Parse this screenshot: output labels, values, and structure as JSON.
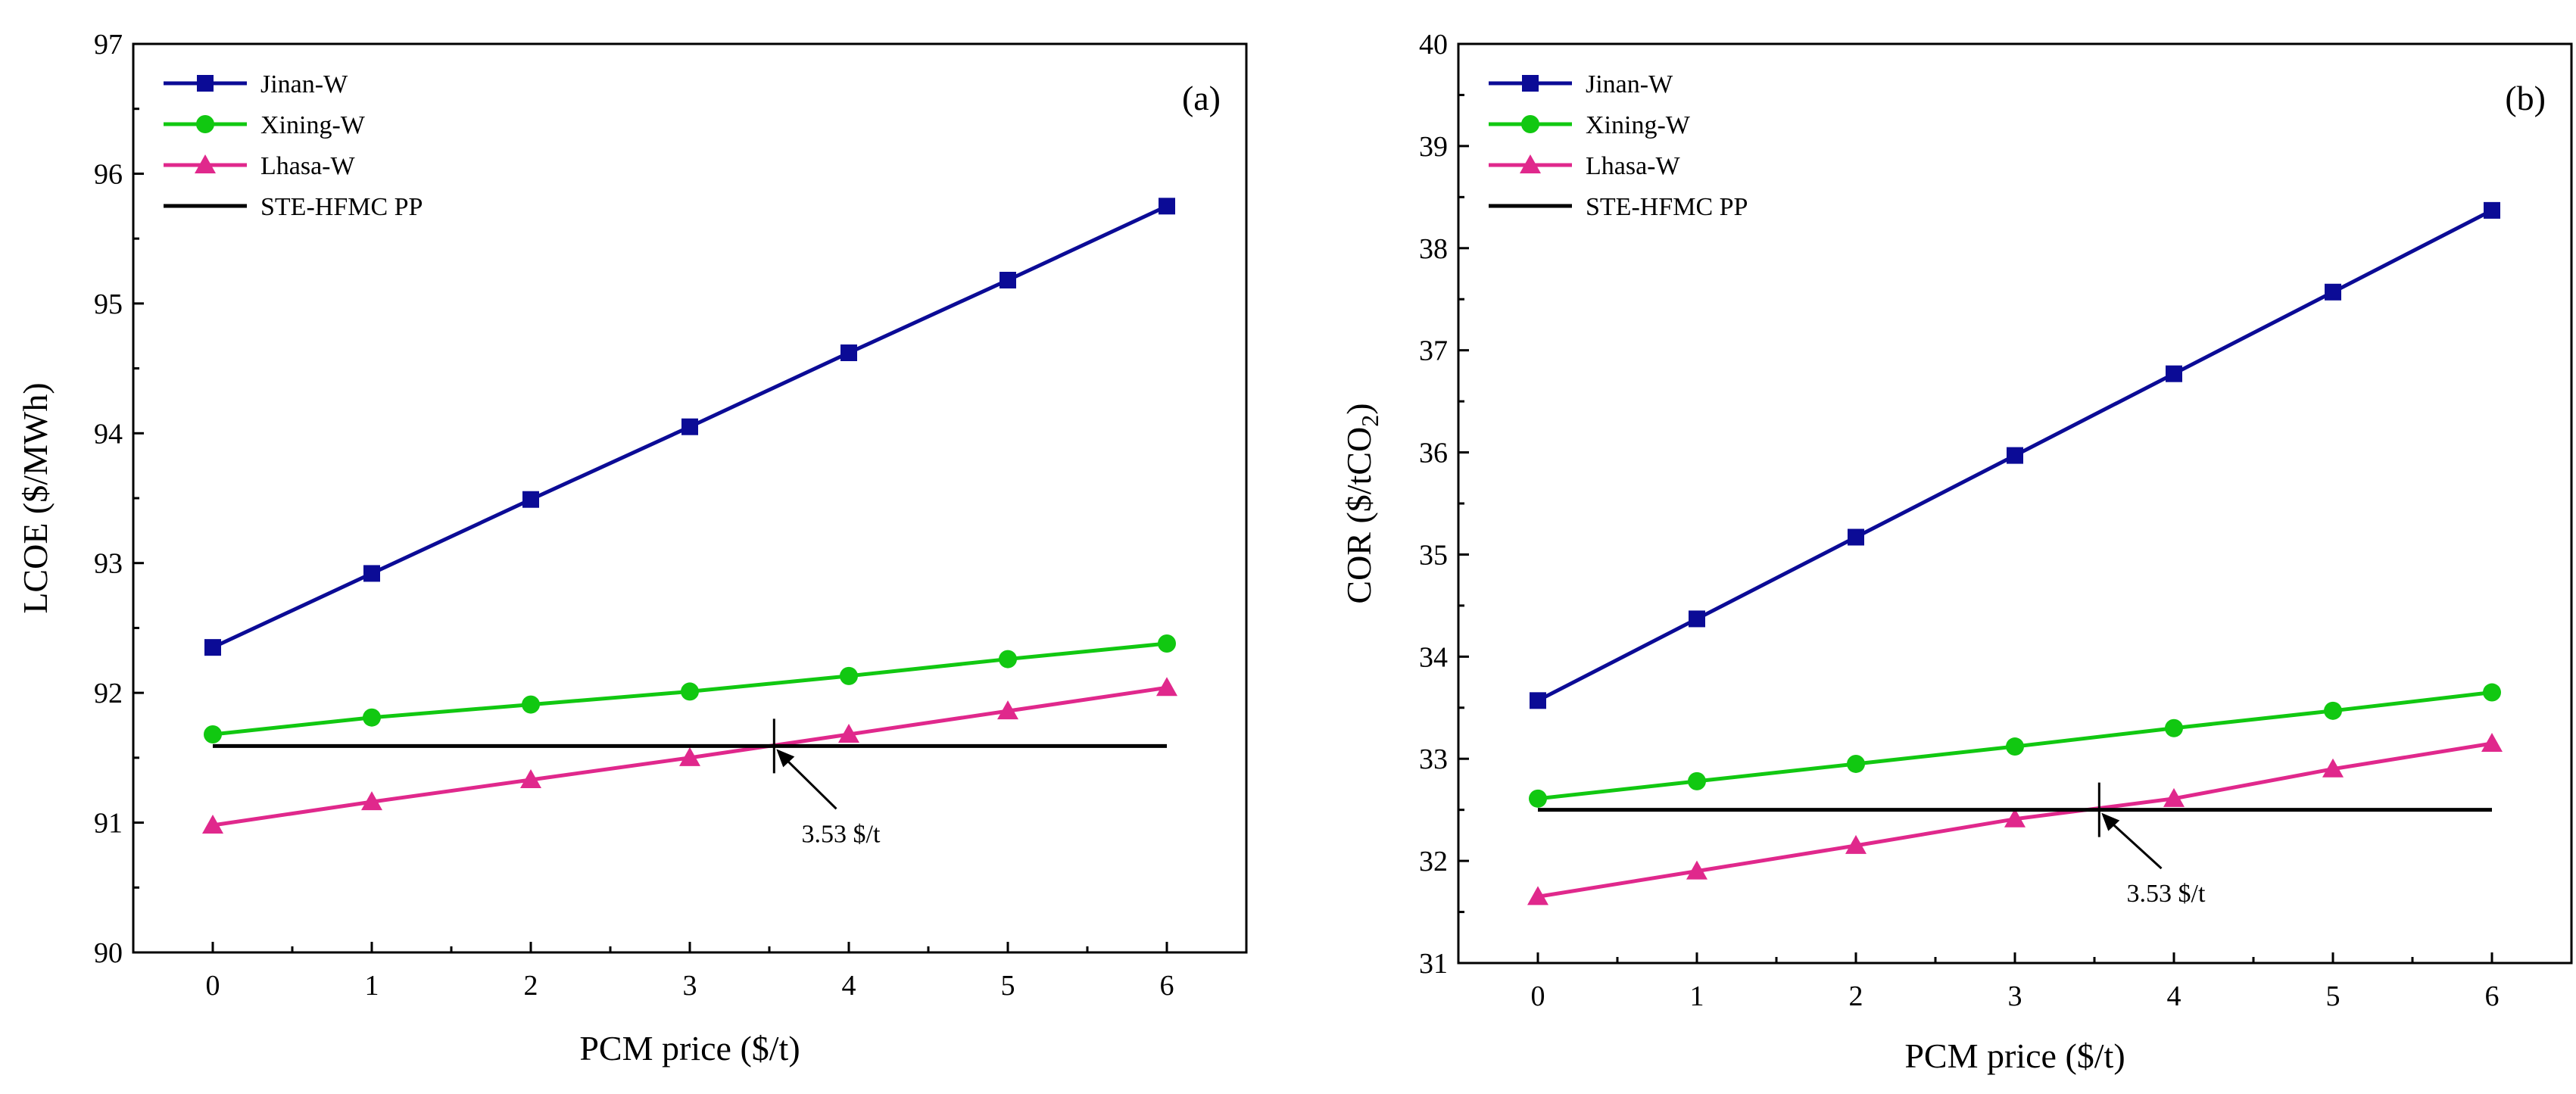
{
  "chart_data": [
    {
      "type": "line",
      "panel_tag": "(a)",
      "xlabel": "PCM price ($/t)",
      "ylabel": "LCOE ($/MWh)",
      "xlim": [
        -0.5,
        6.5
      ],
      "ylim": [
        90,
        97
      ],
      "xticks": [
        0,
        1,
        2,
        3,
        4,
        5,
        6
      ],
      "yticks": [
        90,
        91,
        92,
        93,
        94,
        95,
        96,
        97
      ],
      "x": [
        0,
        1,
        2,
        3,
        4,
        5,
        6
      ],
      "legend_position": "top-left",
      "series": [
        {
          "name": "Jinan-W",
          "color": "#0b0b96",
          "marker": "square",
          "values": [
            92.35,
            92.92,
            93.49,
            94.05,
            94.62,
            95.18,
            95.75
          ]
        },
        {
          "name": "Xining-W",
          "color": "#11c811",
          "marker": "circle",
          "values": [
            91.68,
            91.81,
            91.91,
            92.01,
            92.13,
            92.26,
            92.38
          ]
        },
        {
          "name": "Lhasa-W",
          "color": "#e0288c",
          "marker": "triangle",
          "values": [
            90.98,
            91.16,
            91.33,
            91.5,
            91.68,
            91.86,
            92.04
          ]
        },
        {
          "name": "STE-HFMC PP",
          "color": "#000000",
          "marker": "none",
          "values": [
            91.59,
            91.59,
            91.59,
            91.59,
            91.59,
            91.59,
            91.59
          ]
        }
      ],
      "annotation": {
        "text": "3.53 $/t",
        "x": 3.53,
        "y": 91.59,
        "text_x": 3.95,
        "text_y": 90.85
      }
    },
    {
      "type": "line",
      "panel_tag": "(b)",
      "xlabel": "PCM price ($/t)",
      "ylabel_main": "COR ($/tCO",
      "ylabel_sub": "2",
      "ylabel_end": ")",
      "xlim": [
        -0.5,
        6.5
      ],
      "ylim": [
        31,
        40
      ],
      "xticks": [
        0,
        1,
        2,
        3,
        4,
        5,
        6
      ],
      "yticks": [
        31,
        32,
        33,
        34,
        35,
        36,
        37,
        38,
        39,
        40
      ],
      "x": [
        0,
        1,
        2,
        3,
        4,
        5,
        6
      ],
      "legend_position": "top-left",
      "series": [
        {
          "name": "Jinan-W",
          "color": "#0b0b96",
          "marker": "square",
          "values": [
            33.57,
            34.37,
            35.17,
            35.97,
            36.77,
            37.57,
            38.37
          ]
        },
        {
          "name": "Xining-W",
          "color": "#11c811",
          "marker": "circle",
          "values": [
            32.61,
            32.78,
            32.95,
            33.12,
            33.3,
            33.47,
            33.65
          ]
        },
        {
          "name": "Lhasa-W",
          "color": "#e0288c",
          "marker": "triangle",
          "values": [
            31.65,
            31.9,
            32.15,
            32.41,
            32.61,
            32.9,
            33.15
          ]
        },
        {
          "name": "STE-HFMC PP",
          "color": "#000000",
          "marker": "none",
          "values": [
            32.5,
            32.5,
            32.5,
            32.5,
            32.5,
            32.5,
            32.5
          ]
        }
      ],
      "annotation": {
        "text": "3.53 $/t",
        "x": 3.53,
        "y": 32.5,
        "text_x": 3.95,
        "text_y": 31.6
      }
    }
  ]
}
